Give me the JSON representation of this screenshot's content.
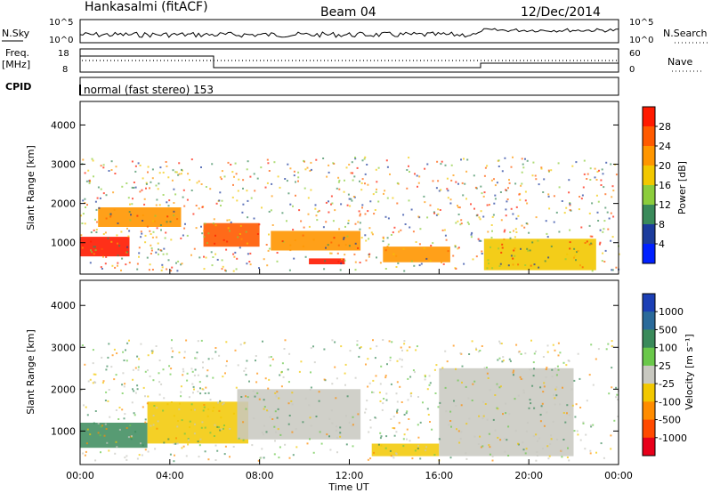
{
  "header": {
    "station": "Hankasalmi (fitACF)",
    "beam": "Beam 04",
    "date": "12/Dec/2014"
  },
  "noise_panel": {
    "left_label": "N.Sky",
    "right_label": "N.Search",
    "ticks_left": [
      "10^5",
      "10^0"
    ],
    "ticks_right": [
      "10^5",
      "10^0"
    ]
  },
  "freq_panel": {
    "left_label_1": "Freq.",
    "left_label_2": "[MHz]",
    "right_label": "Nave",
    "ticks_left": [
      "18",
      "8"
    ],
    "ticks_right": [
      "60",
      "0"
    ]
  },
  "cpid": {
    "label": "CPID",
    "text": "normal (fast stereo) 153"
  },
  "power_panel": {
    "ylabel": "Slant Range [km]",
    "yticks": [
      "4000",
      "3000",
      "2000",
      "1000"
    ],
    "colorbar_label": "Power [dB]",
    "colorbar_ticks": [
      "28",
      "24",
      "20",
      "16",
      "12",
      "8",
      "4"
    ],
    "colorbar_colors": [
      "#ff1a00",
      "#ff5a00",
      "#ff9600",
      "#f2c800",
      "#8ccd3c",
      "#3a8a5a",
      "#1c3c9c",
      "#0020ff"
    ]
  },
  "velocity_panel": {
    "ylabel": "Slant Range [km]",
    "yticks": [
      "4000",
      "3000",
      "2000",
      "1000"
    ],
    "colorbar_label": "Velocity [m s⁻¹]",
    "colorbar_ticks": [
      "1000",
      "500",
      "100",
      "25",
      "-25",
      "-100",
      "-500",
      "-1000"
    ],
    "colorbar_colors": [
      "#1b3fb5",
      "#2a6a9a",
      "#3a8a5a",
      "#6ac84a",
      "#c8c8c0",
      "#f2c800",
      "#ff8c00",
      "#ff4a00",
      "#e8001a"
    ]
  },
  "xaxis": {
    "ticks": [
      "00:00",
      "04:00",
      "08:00",
      "12:00",
      "16:00",
      "20:00",
      "00:00"
    ],
    "label": "Time UT"
  },
  "chart_data": [
    {
      "type": "heatmap",
      "title": "Power",
      "xlabel": "Time UT",
      "ylabel": "Slant Range [km]",
      "xlim_hours": [
        0,
        24
      ],
      "ylim": [
        200,
        4600
      ],
      "colorbar": "Power [dB]",
      "regions_approx": [
        {
          "t_start": 0.0,
          "t_end": 2.2,
          "range_low": 650,
          "range_high": 1150,
          "power_db": 28
        },
        {
          "t_start": 0.8,
          "t_end": 4.5,
          "range_low": 1400,
          "range_high": 1900,
          "power_db": 22
        },
        {
          "t_start": 5.5,
          "t_end": 8.0,
          "range_low": 900,
          "range_high": 1500,
          "power_db": 26
        },
        {
          "t_start": 8.5,
          "t_end": 12.5,
          "range_low": 800,
          "range_high": 1300,
          "power_db": 20
        },
        {
          "t_start": 10.2,
          "t_end": 11.8,
          "range_low": 450,
          "range_high": 600,
          "power_db": 28
        },
        {
          "t_start": 13.5,
          "t_end": 16.5,
          "range_low": 500,
          "range_high": 900,
          "power_db": 22
        },
        {
          "t_start": 18.0,
          "t_end": 23.0,
          "range_low": 300,
          "range_high": 1100,
          "power_db": 18
        }
      ]
    },
    {
      "type": "heatmap",
      "title": "Velocity",
      "xlabel": "Time UT",
      "ylabel": "Slant Range [km]",
      "xlim_hours": [
        0,
        24
      ],
      "ylim": [
        200,
        4600
      ],
      "colorbar": "Velocity [m s⁻¹]",
      "regions_approx": [
        {
          "t_start": 0.0,
          "t_end": 3.0,
          "range_low": 600,
          "range_high": 1200,
          "velocity": 100
        },
        {
          "t_start": 3.0,
          "t_end": 7.5,
          "range_low": 700,
          "range_high": 1700,
          "velocity": -100
        },
        {
          "t_start": 7.0,
          "t_end": 12.5,
          "range_low": 800,
          "range_high": 2000,
          "velocity": 0
        },
        {
          "t_start": 13.0,
          "t_end": 16.0,
          "range_low": 400,
          "range_high": 700,
          "velocity": -100
        },
        {
          "t_start": 16.0,
          "t_end": 22.0,
          "range_low": 400,
          "range_high": 2500,
          "velocity": 0
        }
      ]
    }
  ]
}
